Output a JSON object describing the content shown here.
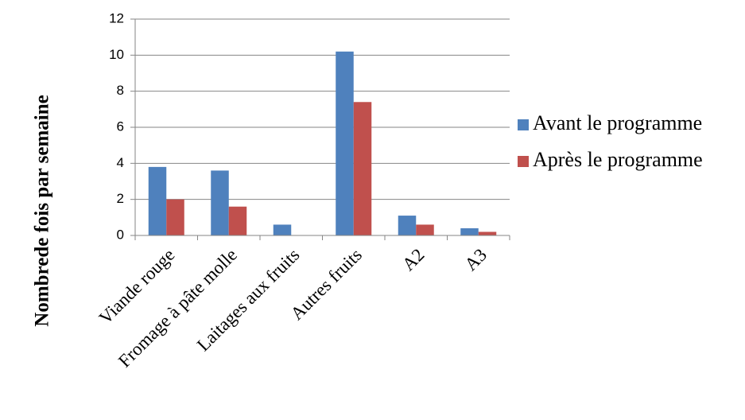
{
  "chart_data": {
    "type": "bar",
    "title": "",
    "xlabel": "",
    "ylabel": "Nombrede fois par semaine",
    "categories": [
      "Viande rouge",
      "Fromage à pâte molle",
      "Laitages aux fruits",
      "Autres fruits",
      "A2",
      "A3"
    ],
    "series": [
      {
        "name": "Avant le programme",
        "color": "#4F81BD",
        "values": [
          3.8,
          3.6,
          0.6,
          10.2,
          1.1,
          0.4
        ]
      },
      {
        "name": "Après le programme",
        "color": "#C0504D",
        "values": [
          2.0,
          1.6,
          0.0,
          7.4,
          0.6,
          0.2
        ]
      }
    ],
    "ylim": [
      0,
      12
    ],
    "yticks": [
      0,
      2,
      4,
      6,
      8,
      10,
      12
    ],
    "grid": true,
    "legend": "right"
  }
}
